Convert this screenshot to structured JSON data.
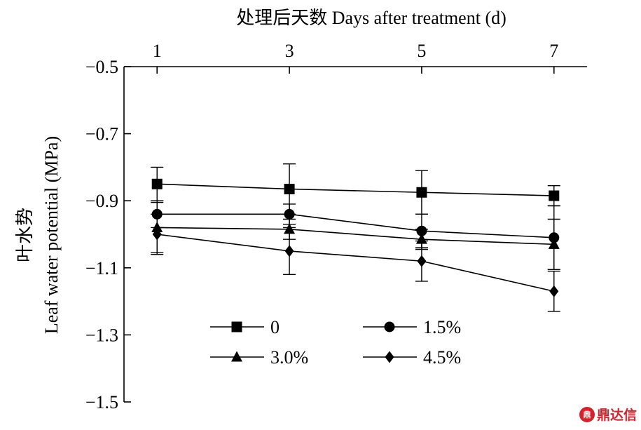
{
  "chart_data": {
    "type": "line",
    "x": [
      1,
      3,
      5,
      7
    ],
    "xlabel": "处理后天数  Days after treatment (d)",
    "ylabel_cn": "叶水势",
    "ylabel": "Leaf water potential (MPa)",
    "ylim": [
      -1.5,
      -0.5
    ],
    "xlim": [
      0.5,
      7.5
    ],
    "x_axis_position": "top",
    "yticks": [
      "−0.5",
      "−0.7",
      "−0.9",
      "−1.1",
      "−1.3",
      "−1.5"
    ],
    "ytick_values": [
      -0.5,
      -0.7,
      -0.9,
      -1.1,
      -1.3,
      -1.5
    ],
    "xticks": [
      "1",
      "3",
      "5",
      "7"
    ],
    "grid": false,
    "legend_placement": "bottom-center",
    "series": [
      {
        "name": "0",
        "marker": "square",
        "values": [
          -0.85,
          -0.865,
          -0.875,
          -0.885
        ],
        "errors": [
          0.05,
          0.075,
          0.065,
          0.03
        ]
      },
      {
        "name": "1.5%",
        "marker": "circle",
        "values": [
          -0.94,
          -0.94,
          -0.99,
          -1.01
        ],
        "errors": [
          0.04,
          0.03,
          0.05,
          0.095
        ]
      },
      {
        "name": "3.0%",
        "marker": "triangle",
        "values": [
          -0.98,
          -0.985,
          -1.015,
          -1.03
        ],
        "errors": [
          0.075,
          0.03,
          0.03,
          0.075
        ]
      },
      {
        "name": "4.5%",
        "marker": "diamond",
        "values": [
          -1.0,
          -1.05,
          -1.08,
          -1.17
        ],
        "errors": [
          0.06,
          0.07,
          0.06,
          0.06
        ]
      }
    ]
  },
  "watermark": {
    "logo_text": "鼎",
    "text": "鼎达信"
  }
}
